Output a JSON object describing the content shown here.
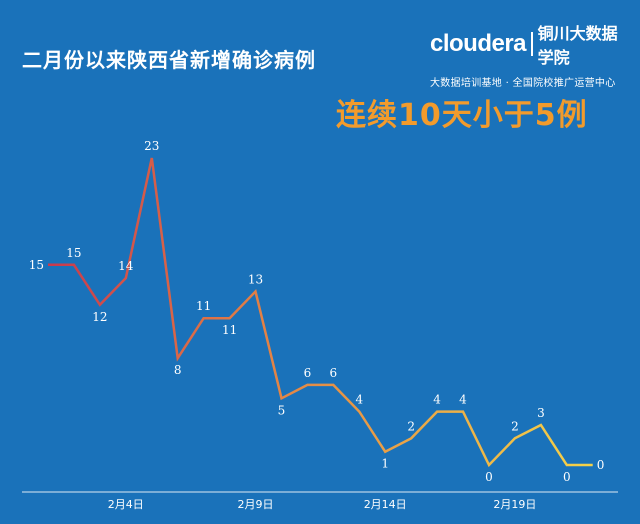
{
  "header": {
    "title": "二月份以来陕西省新增确诊病例",
    "headline": "连续10天小于5例"
  },
  "brand": {
    "name": "cloudera",
    "school": "铜川大数据学院",
    "tagline": "大数据培训基地 · 全国院校推广运营中心"
  },
  "colors": {
    "background": "#1a72ba",
    "line_start": "#c8364e",
    "line_end": "#f5d449",
    "headline": "#f29b2c"
  },
  "chart_data": {
    "type": "line",
    "title": "二月份以来陕西省新增确诊病例",
    "x": [
      "2月1日",
      "2月2日",
      "2月3日",
      "2月4日",
      "2月5日",
      "2月6日",
      "2月7日",
      "2月8日",
      "2月9日",
      "2月10日",
      "2月11日",
      "2月12日",
      "2月13日",
      "2月14日",
      "2月15日",
      "2月16日",
      "2月17日",
      "2月18日",
      "2月19日",
      "2月20日",
      "2月21日",
      "2月22日"
    ],
    "values": [
      15,
      15,
      12,
      14,
      23,
      8,
      11,
      11,
      13,
      5,
      6,
      6,
      4,
      1,
      2,
      4,
      4,
      0,
      2,
      3,
      0,
      0
    ],
    "x_tick_labels": [
      {
        "index": 3,
        "label": "2月4日"
      },
      {
        "index": 8,
        "label": "2月9日"
      },
      {
        "index": 13,
        "label": "2月14日"
      },
      {
        "index": 18,
        "label": "2月19日"
      }
    ],
    "ylim": [
      0,
      23
    ],
    "grid": false,
    "legend": "none",
    "xlabel": "",
    "ylabel": ""
  }
}
